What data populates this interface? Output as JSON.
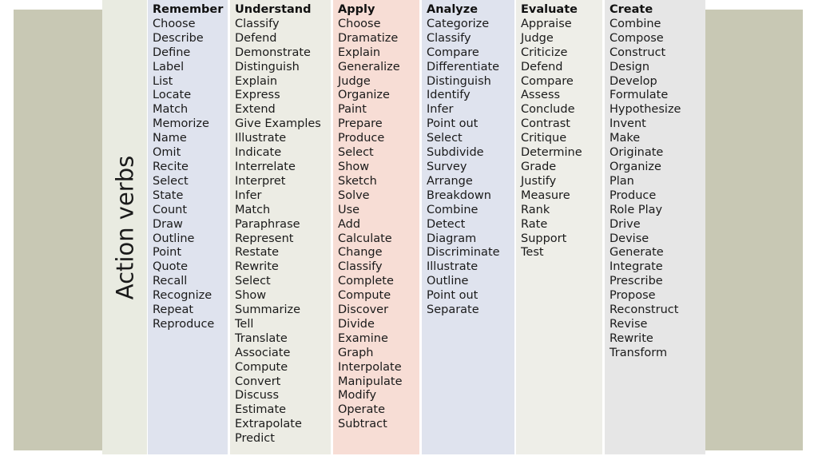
{
  "title": "Action verbs",
  "colors": {
    "side_panel": "#c8c8b4",
    "label_column": "#e9ebe1",
    "remember": "#dfe3ee",
    "understand": "#ecece4",
    "apply": "#f7ddd5",
    "analyze": "#dfe3ee",
    "evaluate": "#eeeee8",
    "create": "#e6e6e6"
  },
  "columns": [
    {
      "heading": "Remember",
      "verbs": [
        "Choose",
        "Describe",
        "Define",
        "Label",
        "List",
        "Locate",
        "Match",
        "Memorize",
        "Name",
        "Omit",
        "Recite",
        "Select",
        "State",
        "Count",
        "Draw",
        "Outline",
        "Point",
        "Quote",
        "Recall",
        "Recognize",
        "Repeat",
        "Reproduce"
      ]
    },
    {
      "heading": "Understand",
      "verbs": [
        "Classify",
        "Defend",
        "Demonstrate",
        "Distinguish",
        "Explain",
        "Express",
        "Extend",
        "Give Examples",
        "Illustrate",
        "Indicate",
        "Interrelate",
        "Interpret",
        "Infer",
        "Match",
        "Paraphrase",
        "Represent",
        "Restate",
        "Rewrite",
        "Select",
        "Show",
        "Summarize",
        "Tell",
        "Translate",
        "Associate",
        "Compute",
        "Convert",
        "Discuss",
        "Estimate",
        "Extrapolate",
        "Predict"
      ]
    },
    {
      "heading": "Apply",
      "verbs": [
        "Choose",
        "Dramatize",
        "Explain",
        "Generalize",
        "Judge",
        "Organize",
        "Paint",
        "Prepare",
        "Produce",
        "Select",
        "Show",
        "Sketch",
        "Solve",
        "Use",
        "Add",
        "Calculate",
        "Change",
        "Classify",
        "Complete",
        "Compute",
        "Discover",
        "Divide",
        "Examine",
        "Graph",
        "Interpolate",
        "Manipulate",
        "Modify",
        "Operate",
        "Subtract"
      ]
    },
    {
      "heading": "Analyze",
      "verbs": [
        "Categorize",
        "Classify",
        "Compare",
        "Differentiate",
        "Distinguish",
        "Identify",
        "Infer",
        "Point out",
        "Select",
        "Subdivide",
        "Survey",
        "Arrange",
        "Breakdown",
        "Combine",
        "Detect",
        "Diagram",
        "Discriminate",
        "Illustrate",
        "Outline",
        "Point out",
        "Separate"
      ]
    },
    {
      "heading": "Evaluate",
      "verbs": [
        "Appraise",
        "Judge",
        "Criticize",
        "Defend",
        "Compare",
        "Assess",
        "Conclude",
        "Contrast",
        "Critique",
        "Determine",
        "Grade",
        "Justify",
        "Measure",
        "Rank",
        "Rate",
        "Support",
        "Test"
      ]
    },
    {
      "heading": "Create",
      "verbs": [
        "Combine",
        "Compose",
        "Construct",
        "Design",
        "Develop",
        "Formulate",
        "Hypothesize",
        "Invent",
        "Make",
        "Originate",
        "Organize",
        "Plan",
        "Produce",
        "Role Play",
        "Drive",
        "Devise",
        "Generate",
        "Integrate",
        "Prescribe",
        "Propose",
        "Reconstruct",
        "Revise",
        "Rewrite",
        "Transform"
      ]
    }
  ]
}
